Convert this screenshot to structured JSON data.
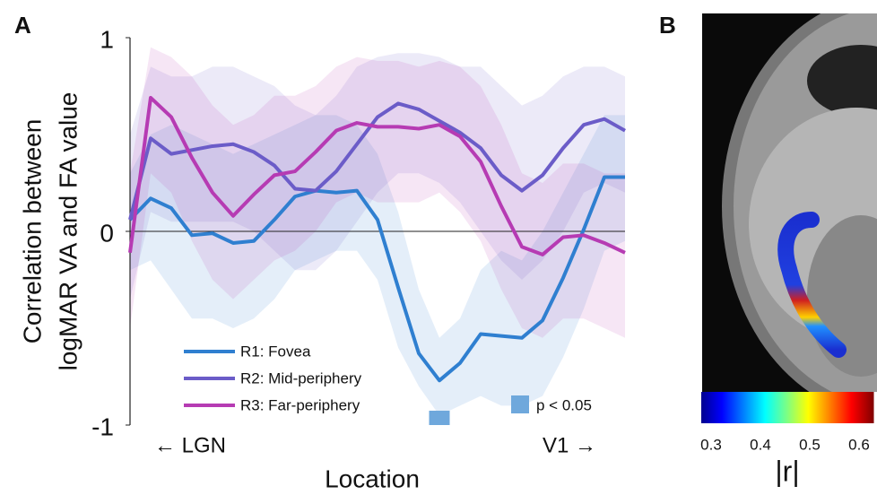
{
  "chart_data": [
    {
      "type": "line",
      "panel": "A",
      "ylabel": [
        "Correlation between",
        "logMAR VA and FA value"
      ],
      "xlabel": "Location",
      "x_start_label": "← LGN",
      "x_end_label": "V1 →",
      "x": [
        0,
        1,
        2,
        3,
        4,
        5,
        6,
        7,
        8,
        9,
        10,
        11,
        12,
        13,
        14,
        15,
        16,
        17,
        18,
        19,
        20,
        21,
        22,
        23,
        24
      ],
      "xlim": [
        0,
        24
      ],
      "ylim": [
        -1,
        1
      ],
      "yticks": [
        -1,
        0,
        1
      ],
      "reference_line": 0,
      "series": [
        {
          "name": "R1: Fovea",
          "color": "#2f7fd0",
          "values": [
            0.06,
            0.17,
            0.12,
            -0.02,
            -0.01,
            -0.06,
            -0.05,
            0.06,
            0.18,
            0.21,
            0.2,
            0.21,
            0.06,
            -0.29,
            -0.63,
            -0.77,
            -0.68,
            -0.53,
            -0.54,
            -0.55,
            -0.46,
            -0.24,
            0.01,
            0.28,
            0.28
          ],
          "upper": [
            0.3,
            0.5,
            0.55,
            0.5,
            0.45,
            0.4,
            0.45,
            0.5,
            0.55,
            0.6,
            0.6,
            0.55,
            0.4,
            0.1,
            -0.3,
            -0.55,
            -0.45,
            -0.2,
            -0.1,
            -0.15,
            0.0,
            0.2,
            0.4,
            0.6,
            0.6
          ],
          "lower": [
            -0.2,
            -0.15,
            -0.3,
            -0.45,
            -0.45,
            -0.5,
            -0.45,
            -0.35,
            -0.2,
            -0.15,
            -0.1,
            -0.1,
            -0.25,
            -0.6,
            -0.8,
            -0.95,
            -0.9,
            -0.85,
            -0.9,
            -0.9,
            -0.85,
            -0.65,
            -0.4,
            -0.1,
            -0.05
          ]
        },
        {
          "name": "R2: Mid-periphery",
          "color": "#6b5cc8",
          "values": [
            0.06,
            0.48,
            0.4,
            0.42,
            0.44,
            0.45,
            0.41,
            0.34,
            0.22,
            0.21,
            0.31,
            0.45,
            0.59,
            0.66,
            0.63,
            0.57,
            0.51,
            0.43,
            0.29,
            0.21,
            0.29,
            0.43,
            0.55,
            0.58,
            0.52
          ],
          "upper": [
            0.5,
            0.85,
            0.8,
            0.8,
            0.85,
            0.85,
            0.8,
            0.75,
            0.65,
            0.6,
            0.7,
            0.85,
            0.9,
            0.92,
            0.92,
            0.9,
            0.85,
            0.85,
            0.75,
            0.65,
            0.7,
            0.8,
            0.85,
            0.85,
            0.8
          ],
          "lower": [
            -0.35,
            0.1,
            0.05,
            0.05,
            0.05,
            0.05,
            0.0,
            -0.1,
            -0.2,
            -0.2,
            -0.1,
            0.05,
            0.2,
            0.3,
            0.3,
            0.25,
            0.15,
            0.0,
            -0.15,
            -0.25,
            -0.15,
            0.0,
            0.2,
            0.25,
            0.2
          ]
        },
        {
          "name": "R3: Far-periphery",
          "color": "#b63bb3",
          "values": [
            -0.11,
            0.69,
            0.59,
            0.38,
            0.2,
            0.08,
            0.19,
            0.29,
            0.31,
            0.41,
            0.52,
            0.56,
            0.54,
            0.54,
            0.53,
            0.55,
            0.49,
            0.36,
            0.13,
            -0.08,
            -0.12,
            -0.03,
            -0.02,
            -0.06,
            -0.11
          ],
          "upper": [
            0.3,
            0.95,
            0.9,
            0.8,
            0.65,
            0.55,
            0.6,
            0.7,
            0.7,
            0.75,
            0.85,
            0.9,
            0.88,
            0.88,
            0.85,
            0.88,
            0.85,
            0.75,
            0.55,
            0.3,
            0.25,
            0.35,
            0.35,
            0.3,
            0.3
          ],
          "lower": [
            -0.5,
            0.3,
            0.2,
            -0.05,
            -0.25,
            -0.35,
            -0.25,
            -0.15,
            -0.1,
            0.0,
            0.15,
            0.2,
            0.15,
            0.15,
            0.15,
            0.2,
            0.1,
            -0.05,
            -0.3,
            -0.5,
            -0.55,
            -0.45,
            -0.45,
            -0.5,
            -0.55
          ]
        }
      ],
      "significance": {
        "label": "p < 0.05",
        "x": [
          14.5,
          15.5
        ],
        "color": "#6fa8dc"
      }
    },
    {
      "type": "image",
      "panel": "B",
      "colorbar": {
        "lim": [
          0.28,
          0.63
        ],
        "ticks": [
          0.3,
          0.4,
          0.5,
          0.6
        ],
        "label": "|r|"
      }
    }
  ]
}
